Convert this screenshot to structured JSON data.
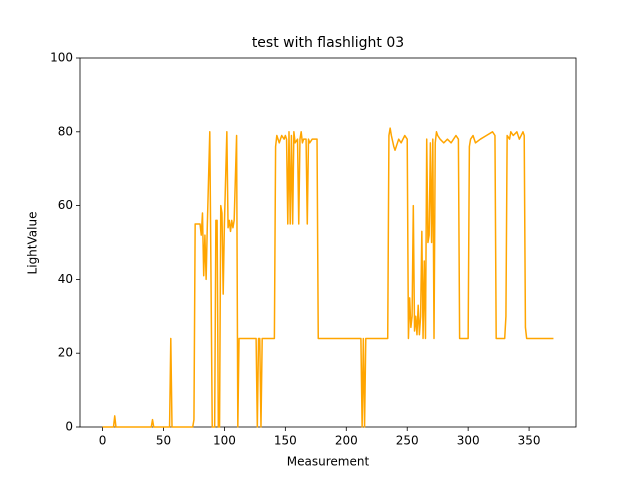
{
  "chart_data": {
    "type": "line",
    "title": "test with flashlight 03",
    "x_label": "Measurement",
    "y_label": "LightValue",
    "color": "#ffa500",
    "x": [
      0,
      9,
      10,
      11,
      40,
      41,
      42,
      55,
      56,
      57,
      74,
      75,
      76,
      80,
      81,
      82,
      83,
      84,
      85,
      86,
      88,
      89,
      90,
      92,
      93,
      94,
      95,
      96,
      97,
      98,
      99,
      100,
      102,
      103,
      104,
      105,
      106,
      107,
      108,
      110,
      111,
      112,
      126,
      127,
      128,
      129,
      130,
      131,
      141,
      142,
      143,
      145,
      147,
      149,
      150,
      151,
      152,
      153,
      154,
      155,
      156,
      157,
      158,
      160,
      161,
      162,
      163,
      164,
      165,
      167,
      168,
      169,
      170,
      172,
      175,
      176,
      177,
      212,
      213,
      214,
      215,
      216,
      234,
      235,
      236,
      237,
      239,
      240,
      241,
      243,
      245,
      248,
      250,
      251,
      252,
      253,
      254,
      255,
      256,
      257,
      258,
      259,
      260,
      261,
      262,
      263,
      264,
      265,
      266,
      267,
      268,
      269,
      270,
      271,
      272,
      273,
      274,
      275,
      277,
      280,
      283,
      286,
      288,
      290,
      292,
      293,
      300,
      301,
      302,
      304,
      306,
      310,
      315,
      320,
      322,
      323,
      330,
      331,
      332,
      334,
      335,
      337,
      340,
      342,
      345,
      346,
      347,
      348,
      370
    ],
    "values": [
      0,
      0,
      3,
      0,
      0,
      2,
      0,
      0,
      24,
      0,
      0,
      2,
      55,
      55,
      52,
      58,
      41,
      52,
      40,
      55,
      80,
      40,
      0,
      0,
      56,
      56,
      0,
      0,
      60,
      58,
      36,
      55,
      80,
      54,
      56,
      53,
      56,
      54,
      56,
      79,
      0,
      24,
      24,
      0,
      24,
      24,
      0,
      24,
      24,
      76,
      79,
      77,
      79,
      78,
      79,
      78,
      55,
      80,
      55,
      79,
      55,
      80,
      77,
      78,
      55,
      78,
      80,
      77,
      78,
      78,
      55,
      78,
      77,
      78,
      78,
      78,
      24,
      24,
      0,
      24,
      0,
      24,
      24,
      79,
      81,
      79,
      76,
      75,
      76,
      78,
      77,
      79,
      78,
      24,
      35,
      27,
      30,
      60,
      26,
      30,
      25,
      33,
      25,
      30,
      53,
      24,
      45,
      24,
      78,
      50,
      52,
      77,
      50,
      78,
      24,
      77,
      80,
      79,
      78,
      77,
      78,
      77,
      78,
      79,
      78,
      24,
      24,
      76,
      78,
      79,
      77,
      78,
      79,
      80,
      79,
      24,
      24,
      30,
      79,
      78,
      80,
      79,
      80,
      78,
      80,
      79,
      27,
      24,
      24
    ],
    "xlim": [
      -18.5,
      388.5
    ],
    "ylim": [
      0,
      100
    ],
    "xticks": [
      0,
      50,
      100,
      150,
      200,
      250,
      300,
      350
    ],
    "yticks": [
      0,
      20,
      40,
      60,
      80,
      100
    ]
  }
}
